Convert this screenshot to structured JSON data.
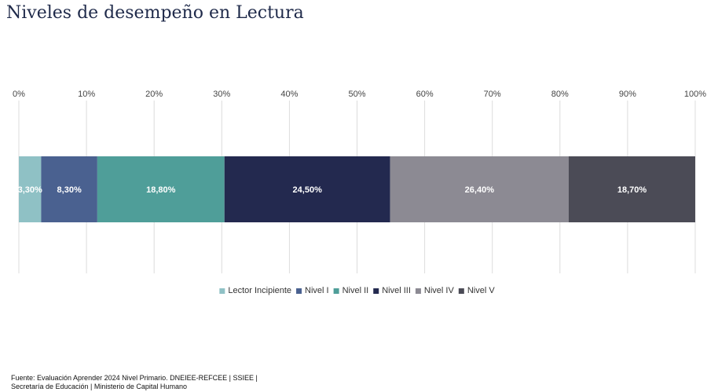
{
  "title": "Niveles de desempeño en Lectura",
  "colors": {
    "title": "#1f2a4a",
    "grid": "#dcdcdc",
    "bar_label": "#ffffff"
  },
  "chart_data": {
    "type": "bar",
    "orientation": "horizontal-stacked-100",
    "title": "Niveles de desempeño en Lectura",
    "xlim": [
      0,
      100
    ],
    "x_ticks": [
      "0%",
      "10%",
      "20%",
      "30%",
      "40%",
      "50%",
      "60%",
      "70%",
      "80%",
      "90%",
      "100%"
    ],
    "grid": true,
    "legend_position": "bottom",
    "series": [
      {
        "name": "Lector Incipiente",
        "value": 3.3,
        "label": "3,30%",
        "color": "#8fc1c5"
      },
      {
        "name": "Nivel I",
        "value": 8.3,
        "label": "8,30%",
        "color": "#4a6190"
      },
      {
        "name": "Nivel II",
        "value": 18.8,
        "label": "18,80%",
        "color": "#4f9e99"
      },
      {
        "name": "Nivel III",
        "value": 24.5,
        "label": "24,50%",
        "color": "#23294f"
      },
      {
        "name": "Nivel IV",
        "value": 26.4,
        "label": "26,40%",
        "color": "#8c8a93"
      },
      {
        "name": "Nivel V",
        "value": 18.7,
        "label": "18,70%",
        "color": "#4b4b56"
      }
    ]
  },
  "source": {
    "line1": "Fuente: Evaluación Aprender 2024 Nivel Primario. DNEIEE-REFCEE | SSIEE |",
    "line2": "Secretaría de Educación | Ministerio de Capital Humano"
  }
}
